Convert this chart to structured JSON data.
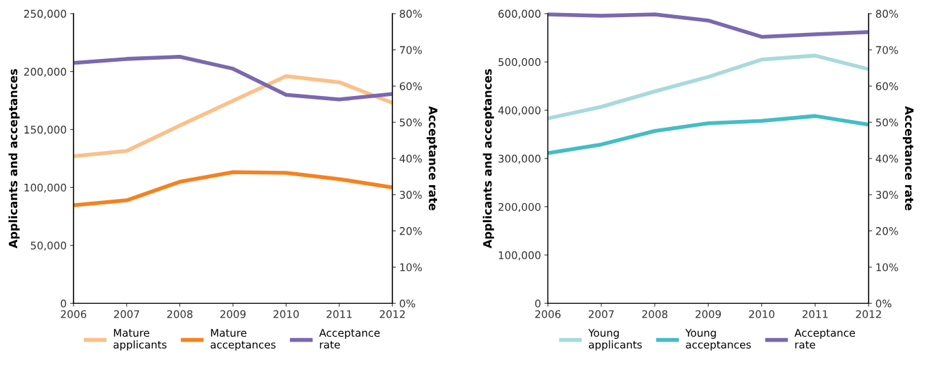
{
  "chart_data": [
    {
      "type": "line",
      "x": [
        2006,
        2007,
        2008,
        2009,
        2010,
        2011,
        2012
      ],
      "xlim": [
        2006,
        2012
      ],
      "xticks": [
        2006,
        2007,
        2008,
        2009,
        2010,
        2011,
        2012
      ],
      "ylabel": "Applicants and acceptances",
      "y2label": "Acceptance rate",
      "ylim": [
        0,
        250000
      ],
      "yticks": [
        {
          "value": 0,
          "label": "0"
        },
        {
          "value": 50000,
          "label": "50,000"
        },
        {
          "value": 100000,
          "label": "100,000"
        },
        {
          "value": 150000,
          "label": "150,000"
        },
        {
          "value": 200000,
          "label": "200,000"
        },
        {
          "value": 250000,
          "label": "250,000"
        }
      ],
      "y2lim": [
        0,
        80
      ],
      "y2ticks": [
        {
          "value": 0,
          "label": "0%"
        },
        {
          "value": 10,
          "label": "10%"
        },
        {
          "value": 20,
          "label": "20%"
        },
        {
          "value": 30,
          "label": "30%"
        },
        {
          "value": 40,
          "label": "40%"
        },
        {
          "value": 50,
          "label": "50%"
        },
        {
          "value": 60,
          "label": "60%"
        },
        {
          "value": 70,
          "label": "70%"
        },
        {
          "value": 80,
          "label": "80%"
        }
      ],
      "grid": false,
      "legend": "bottom",
      "marker": "none",
      "line_style": "solid",
      "series": [
        {
          "name": "Mature\napplicants",
          "color": "#fbc08a",
          "values": [
            127000,
            131500,
            153400,
            174800,
            196100,
            190800,
            173000
          ]
        },
        {
          "name": "Mature\nacceptances",
          "color": "#f5821f",
          "values": [
            84700,
            88900,
            104900,
            113200,
            112600,
            107200,
            100100
          ]
        },
        {
          "name": "Acceptance\nrate",
          "color": "#7b68ae",
          "axis": "y2",
          "values": [
            66.4,
            67.5,
            68.1,
            64.8,
            57.6,
            56.3,
            57.8
          ]
        }
      ]
    },
    {
      "type": "line",
      "x": [
        2006,
        2007,
        2008,
        2009,
        2010,
        2011,
        2012
      ],
      "xlim": [
        2006,
        2012
      ],
      "xticks": [
        2006,
        2007,
        2008,
        2009,
        2010,
        2011,
        2012
      ],
      "ylabel": "Applicants and acceptances",
      "y2label": "Acceptance rate",
      "ylim": [
        0,
        600000
      ],
      "yticks": [
        {
          "value": 0,
          "label": "0"
        },
        {
          "value": 100000,
          "label": "100,000"
        },
        {
          "value": 200000,
          "label": "200,000"
        },
        {
          "value": 300000,
          "label": "300,000"
        },
        {
          "value": 400000,
          "label": "400,000"
        },
        {
          "value": 500000,
          "label": "500,000"
        },
        {
          "value": 600000,
          "label": "600,000"
        }
      ],
      "y2lim": [
        0,
        80
      ],
      "y2ticks": [
        {
          "value": 0,
          "label": "0%"
        },
        {
          "value": 10,
          "label": "10%"
        },
        {
          "value": 20,
          "label": "20%"
        },
        {
          "value": 30,
          "label": "30%"
        },
        {
          "value": 40,
          "label": "40%"
        },
        {
          "value": 50,
          "label": "50%"
        },
        {
          "value": 60,
          "label": "60%"
        },
        {
          "value": 70,
          "label": "70%"
        },
        {
          "value": 80,
          "label": "80%"
        }
      ],
      "grid": false,
      "legend": "bottom",
      "marker": "none",
      "line_style": "solid",
      "series": [
        {
          "name": "Young\napplicants",
          "color": "#a8dadc",
          "values": [
            383000,
            407000,
            439000,
            469000,
            505000,
            513000,
            485000
          ]
        },
        {
          "name": "Young\nacceptances",
          "color": "#45bcc5",
          "values": [
            311000,
            329000,
            357000,
            373000,
            378000,
            388000,
            370000
          ]
        },
        {
          "name": "Acceptance\nrate",
          "color": "#7b68ae",
          "axis": "y2",
          "values": [
            79.8,
            79.4,
            79.8,
            78.1,
            73.6,
            74.3,
            74.9
          ]
        }
      ]
    }
  ]
}
